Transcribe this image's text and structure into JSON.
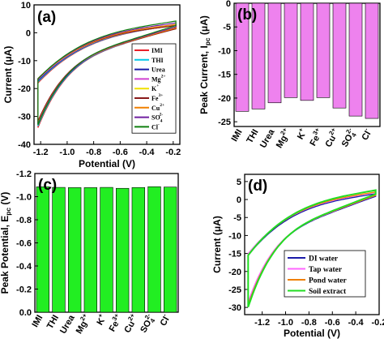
{
  "chart_data": [
    {
      "panel_label": "(a)",
      "type": "line",
      "xlabel": "Potential (V)",
      "ylabel": "Current (μA)",
      "xlim": [
        -1.25,
        -0.15
      ],
      "ylim": [
        -40,
        10
      ],
      "xticks": [
        "-1.2",
        "-1.0",
        "-0.8",
        "-0.6",
        "-0.4",
        "-0.2"
      ],
      "xtick_values": [
        -1.2,
        -1.0,
        -0.8,
        -0.6,
        -0.4,
        -0.2
      ],
      "yticks": [
        "10",
        "0",
        "-10",
        "-20",
        "-30",
        "-40"
      ],
      "ytick_values": [
        10,
        0,
        -10,
        -20,
        -30,
        -40
      ],
      "legend_position": "right",
      "series": [
        {
          "name": "IMI",
          "color": "#e8202a",
          "peak": -34.0,
          "top": 2.8
        },
        {
          "name": "THI",
          "color": "#00c8e8",
          "peak": -33.5,
          "top": 2.6
        },
        {
          "name": "Urea",
          "color": "#1a1aa8",
          "peak": -33.0,
          "top": 2.4
        },
        {
          "name": "Mg2+",
          "color": "#d040d0",
          "peak": -32.5,
          "top": 2.2
        },
        {
          "name": "K+",
          "color": "#f0e000",
          "peak": -32.2,
          "top": 2.0
        },
        {
          "name": "Fe3+",
          "color": "#8a1a1a",
          "peak": -32.0,
          "top": 1.8
        },
        {
          "name": "Cu2+",
          "color": "#f08000",
          "peak": -32.8,
          "top": 2.1
        },
        {
          "name": "SO42-",
          "color": "#7020a0",
          "peak": -33.2,
          "top": 2.5
        },
        {
          "name": "Cl-",
          "color": "#108010",
          "peak": -33.6,
          "top": 3.0
        }
      ],
      "legend_labels": [
        {
          "base": "IMI",
          "sup": "",
          "sub": "",
          "sup2": ""
        },
        {
          "base": "THI",
          "sup": "",
          "sub": "",
          "sup2": ""
        },
        {
          "base": "Urea",
          "sup": "",
          "sub": "",
          "sup2": ""
        },
        {
          "base": "Mg",
          "sup": "2+",
          "sub": "",
          "sup2": ""
        },
        {
          "base": "K",
          "sup": "+",
          "sub": "",
          "sup2": ""
        },
        {
          "base": "Fe",
          "sup": "3+",
          "sub": "",
          "sup2": ""
        },
        {
          "base": "Cu",
          "sup": "2+",
          "sub": "",
          "sup2": ""
        },
        {
          "base": "SO",
          "sup": "",
          "sub": "4",
          "sup2": "2-"
        },
        {
          "base": "Cl",
          "sup": "-",
          "sub": "",
          "sup2": ""
        }
      ]
    },
    {
      "panel_label": "(b)",
      "type": "bar",
      "ylabel": "Peak Current, I",
      "ylabel_sub": "pc",
      "ylabel_unit": " (μA)",
      "ylim": [
        0,
        -26
      ],
      "yticks": [
        "0",
        "-5",
        "-10",
        "-15",
        "-20",
        "-25"
      ],
      "ytick_values": [
        0,
        -5,
        -10,
        -15,
        -20,
        -25
      ],
      "bar_color": "#ee82ee",
      "categories": [
        {
          "base": "IMI",
          "sup": "",
          "sub": ""
        },
        {
          "base": "THI",
          "sup": "",
          "sub": ""
        },
        {
          "base": "Urea",
          "sup": "",
          "sub": ""
        },
        {
          "base": "Mg",
          "sup": "2+",
          "sub": ""
        },
        {
          "base": "K",
          "sup": "+",
          "sub": ""
        },
        {
          "base": "Fe",
          "sup": "3+",
          "sub": ""
        },
        {
          "base": "Cu",
          "sup": "2+",
          "sub": ""
        },
        {
          "base": "SO",
          "sup": "2-",
          "sub": "4"
        },
        {
          "base": "Cl",
          "sup": "-",
          "sub": ""
        }
      ],
      "values": [
        -22.8,
        -22.3,
        -21.0,
        -19.9,
        -20.5,
        -19.9,
        -22.1,
        -23.8,
        -24.3
      ]
    },
    {
      "panel_label": "(c)",
      "type": "bar",
      "ylabel": "Peak Potential, E",
      "ylabel_sub": "pc",
      "ylabel_unit": " (V)",
      "ylim": [
        0,
        -1.2
      ],
      "yticks": [
        "-1.2",
        "-1.0",
        "-0.8",
        "-0.6",
        "-0.4",
        "-0.2",
        "0.0"
      ],
      "ytick_values": [
        -1.2,
        -1.0,
        -0.8,
        -0.6,
        -0.4,
        -0.2,
        0.0
      ],
      "bar_color": "#22ee22",
      "categories": [
        {
          "base": "IMI",
          "sup": "",
          "sub": ""
        },
        {
          "base": "THI",
          "sup": "",
          "sub": ""
        },
        {
          "base": "Urea",
          "sup": "",
          "sub": ""
        },
        {
          "base": "Mg",
          "sup": "2+",
          "sub": ""
        },
        {
          "base": "K",
          "sup": "+",
          "sub": ""
        },
        {
          "base": "Fe",
          "sup": "3+",
          "sub": ""
        },
        {
          "base": "Cu",
          "sup": "2+",
          "sub": ""
        },
        {
          "base": "SO",
          "sup": "2-",
          "sub": "4"
        },
        {
          "base": "Cl",
          "sup": "-",
          "sub": ""
        }
      ],
      "values": [
        -1.085,
        -1.08,
        -1.078,
        -1.078,
        -1.08,
        -1.072,
        -1.079,
        -1.086,
        -1.083
      ]
    },
    {
      "panel_label": "(d)",
      "type": "line",
      "xlabel": "Potential (V)",
      "ylabel": "Current (μA)",
      "xlim": [
        -1.35,
        -0.2
      ],
      "ylim": [
        -32,
        7
      ],
      "xticks": [
        "-1.2",
        "-1.0",
        "-0.8",
        "-0.6",
        "-0.4",
        "-0.2"
      ],
      "xtick_values": [
        -1.2,
        -1.0,
        -0.8,
        -0.6,
        -0.4,
        -0.2
      ],
      "yticks": [
        "5",
        "0",
        "-5",
        "-10",
        "-15",
        "-20",
        "-25",
        "-30"
      ],
      "ytick_values": [
        5,
        0,
        -5,
        -10,
        -15,
        -20,
        -25,
        -30
      ],
      "legend_position": "bottom-right",
      "series": [
        {
          "name": "DI water",
          "color": "#1a1aa8",
          "peak": -29.0,
          "top": 1.6
        },
        {
          "name": "Tap water",
          "color": "#ff66ff",
          "peak": -28.5,
          "top": 1.8
        },
        {
          "name": "Pond water",
          "color": "#f08000",
          "peak": -29.5,
          "top": 1.7
        },
        {
          "name": "Soil extract",
          "color": "#22dd22",
          "peak": -30.2,
          "top": 2.0
        }
      ]
    }
  ]
}
